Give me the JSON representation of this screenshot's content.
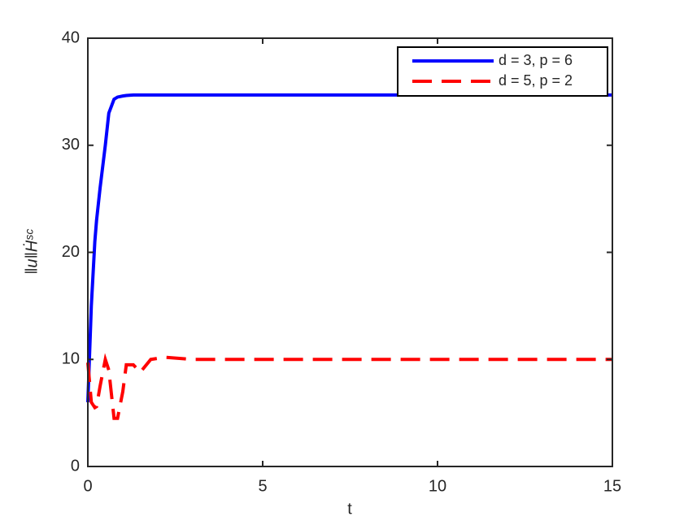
{
  "chart_data": {
    "type": "line",
    "xlabel": "t",
    "ylabel": "‖u‖Ḣˢᶜ",
    "x": [
      0,
      0.1,
      0.2,
      0.25,
      0.35,
      0.5,
      0.6,
      0.75,
      0.85,
      1,
      1.1,
      1.3,
      1.5,
      1.8,
      2.2,
      3,
      5,
      10,
      15
    ],
    "series": [
      {
        "name": "d = 3, p = 6",
        "color": "#0000ff",
        "dash": "solid",
        "values": [
          6,
          15,
          21,
          23,
          26,
          30,
          33,
          34.3,
          34.5,
          34.6,
          34.65,
          34.7,
          34.7,
          34.7,
          34.7,
          34.7,
          34.7,
          34.7,
          34.7
        ]
      },
      {
        "name": "d = 5, p = 2",
        "color": "#ff0000",
        "dash": "dashed",
        "values": [
          9.7,
          6,
          5.5,
          5.6,
          7.5,
          10,
          9,
          4.5,
          4.5,
          7,
          9.5,
          9.5,
          8.8,
          10,
          10.2,
          10,
          10,
          10,
          10
        ]
      }
    ],
    "xlim": [
      0,
      15
    ],
    "xticks": [
      0,
      5,
      10,
      15
    ],
    "ylim": [
      0,
      40
    ],
    "yticks": [
      0,
      10,
      20,
      30,
      40
    ],
    "grid": false,
    "legend": "top-right"
  }
}
